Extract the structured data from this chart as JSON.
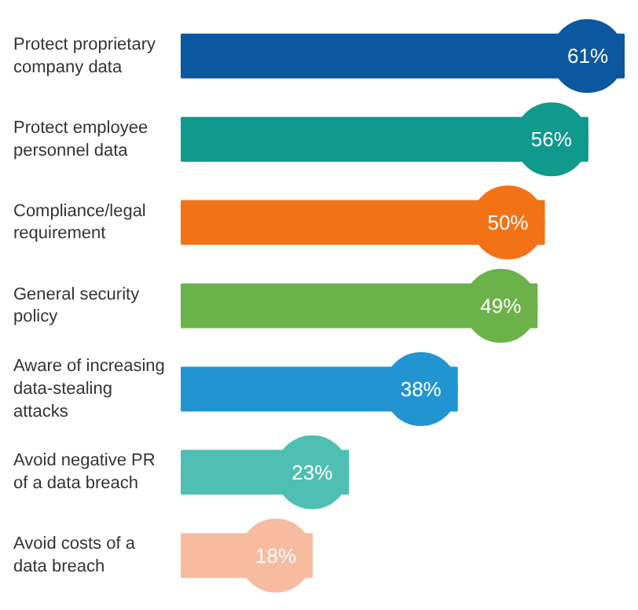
{
  "chart_data": {
    "type": "bar",
    "orientation": "horizontal",
    "categories": [
      "Protect proprietary\ncompany data",
      "Protect employee\npersonnel data",
      "Compliance/legal\nrequirement",
      "General security\npolicy",
      "Aware of increasing\ndata-stealing\nattacks",
      "Avoid negative PR\nof a data breach",
      "Avoid costs of a\ndata breach"
    ],
    "values": [
      61,
      56,
      50,
      49,
      38,
      23,
      18
    ],
    "value_labels": [
      "61%",
      "56%",
      "50%",
      "49%",
      "38%",
      "23%",
      "18%"
    ],
    "colors": [
      "#0b57a0",
      "#10998d",
      "#f47216",
      "#6cb24a",
      "#2394d2",
      "#4fbfb4",
      "#f7bba0"
    ]
  }
}
